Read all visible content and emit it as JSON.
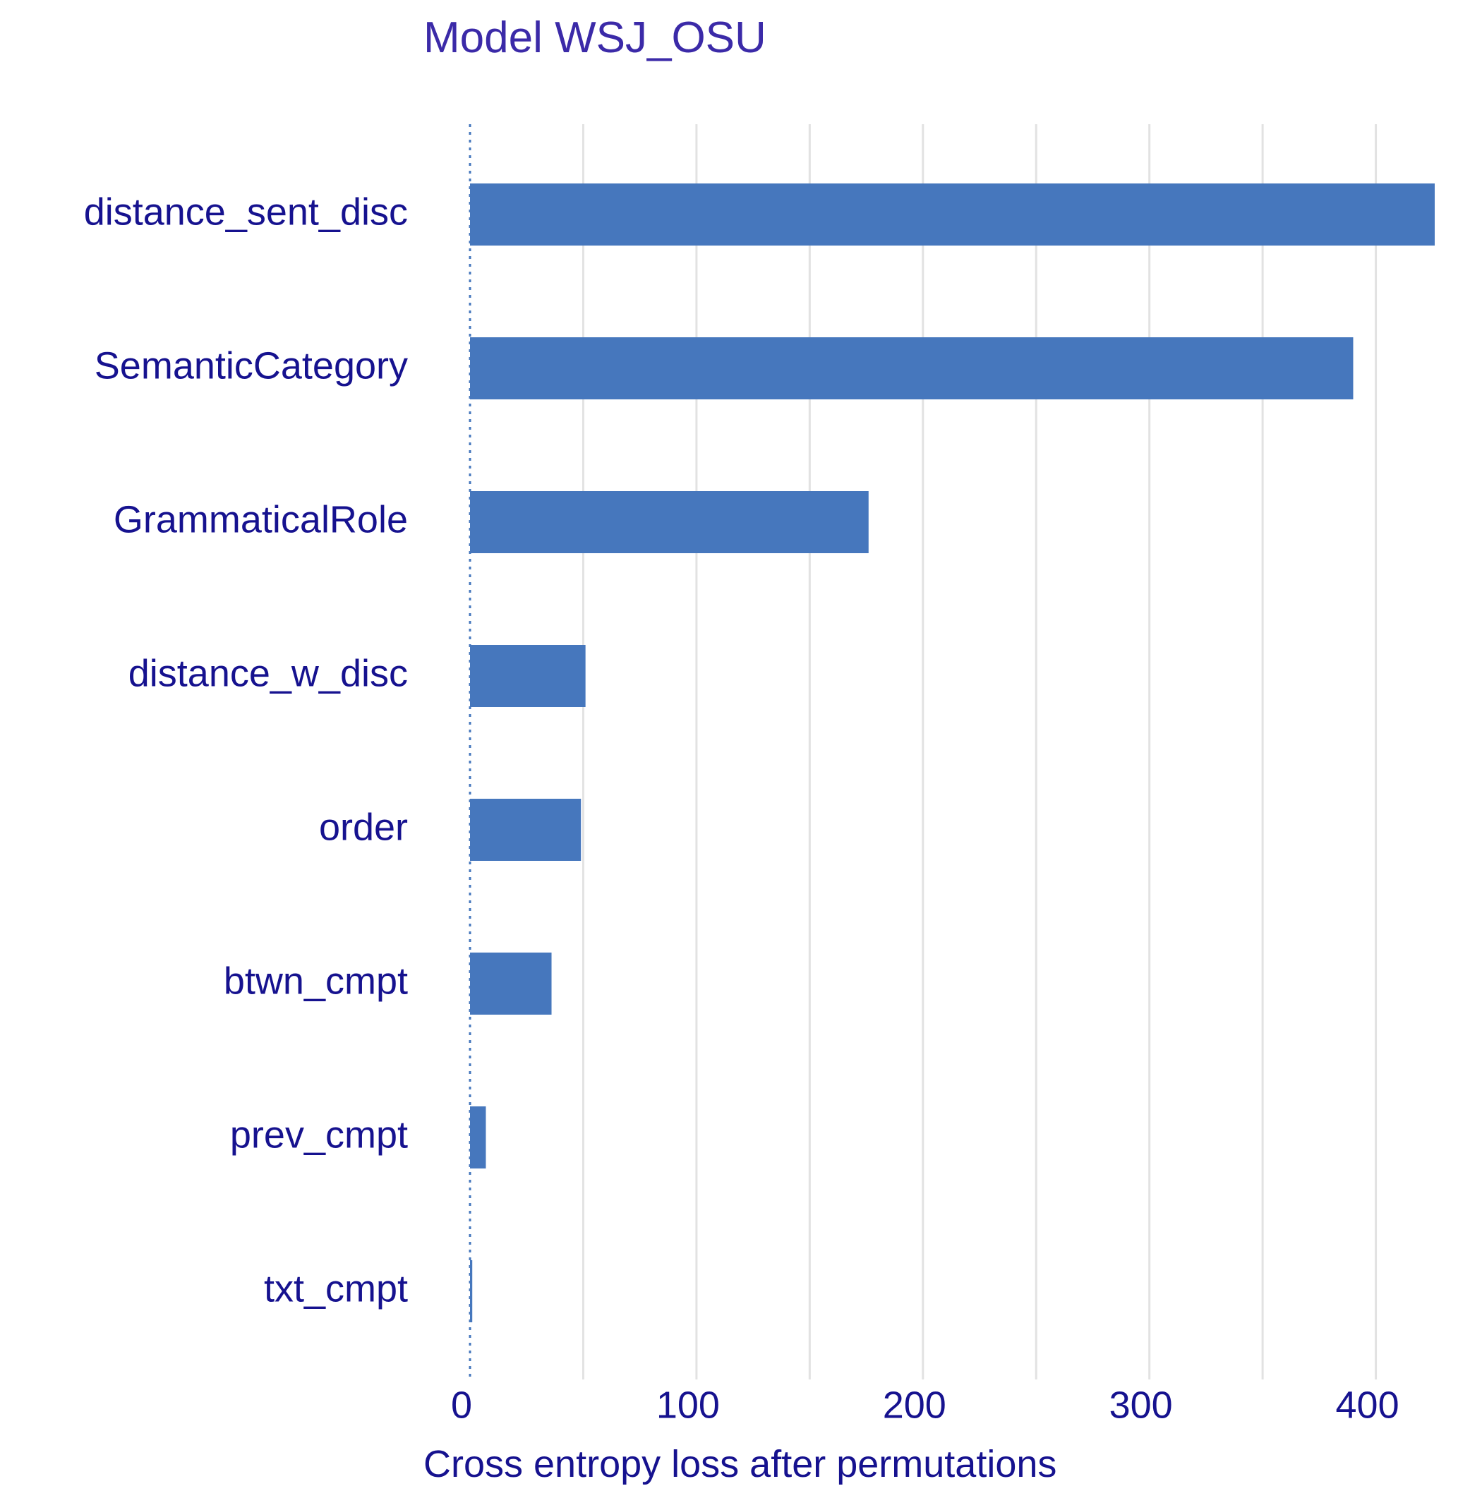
{
  "chart_data": {
    "type": "bar",
    "orientation": "horizontal",
    "title": "Model WSJ_OSU",
    "xlabel": "Cross entropy loss after permutations",
    "ylabel": "",
    "categories": [
      "distance_sent_disc",
      "SemanticCategory",
      "GrammaticalRole",
      "distance_w_disc",
      "order",
      "btwn_cmpt",
      "prev_cmpt",
      "txt_cmpt"
    ],
    "values": [
      426,
      390,
      176,
      51,
      49,
      36,
      7,
      1
    ],
    "xlim": [
      0,
      426
    ],
    "x_ticks": [
      0,
      100,
      200,
      300,
      400
    ],
    "x_tick_labels": [
      "0",
      "100",
      "200",
      "300",
      "400"
    ],
    "baseline": 0,
    "baseline_style": "dotted",
    "grid": "vertical",
    "legend": "none",
    "colors": {
      "bar": "#4677bd",
      "baseline": "#4677bd",
      "grid": "#e2e2e2",
      "title": "#3b2aa8",
      "labels": "#16128f"
    }
  }
}
